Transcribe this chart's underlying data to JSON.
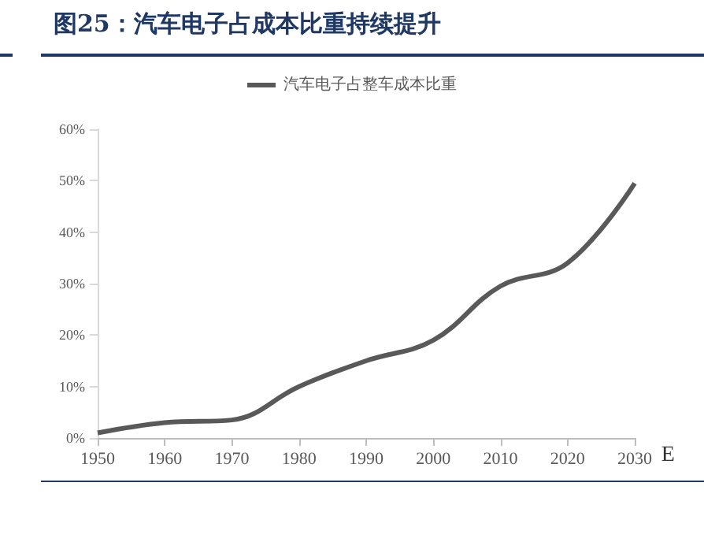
{
  "chart_data": {
    "type": "line",
    "title": "图25：汽车电子占成本比重持续提升",
    "xlabel": "E",
    "categories": [
      "1950",
      "1960",
      "1970",
      "1980",
      "1990",
      "2000",
      "2010",
      "2020",
      "2030"
    ],
    "series": [
      {
        "name": "汽车电子占整车成本比重",
        "color": "#595959",
        "values": [
          1,
          3,
          3.5,
          10,
          15,
          19,
          29.5,
          34,
          49.5
        ]
      }
    ],
    "ylim": [
      0,
      60
    ],
    "yticks": [
      {
        "value": 0,
        "label": "0%"
      },
      {
        "value": 10,
        "label": "10%"
      },
      {
        "value": 20,
        "label": "20%"
      },
      {
        "value": 30,
        "label": "30%"
      },
      {
        "value": 40,
        "label": "40%"
      },
      {
        "value": 50,
        "label": "50%"
      },
      {
        "value": 60,
        "label": "60%"
      }
    ],
    "grid": false,
    "legend": "top",
    "marker": "none",
    "line_style": "solid"
  }
}
